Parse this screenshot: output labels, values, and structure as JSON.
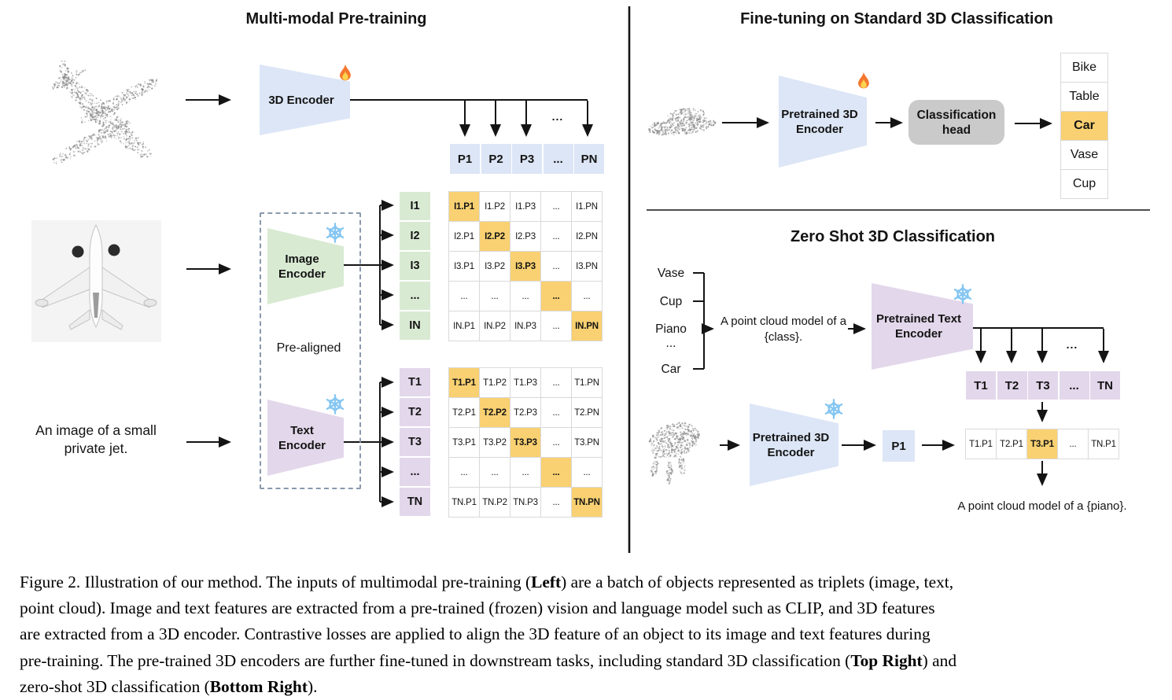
{
  "colors": {
    "blue": "#dce6f6",
    "green": "#d9ead3",
    "purple": "#e3d7eb",
    "highlight_orange": "#f9d172",
    "head_gray": "#cacaca"
  },
  "ellipsis": "...",
  "left": {
    "title": "Multi-modal Pre-training",
    "encoder3d_label": "3D Encoder",
    "image_encoder_label": "Image Encoder",
    "text_encoder_label": "Text Encoder",
    "pre_aligned": "Pre-aligned",
    "text_input": "An image of a small private jet.",
    "p_row": [
      "P1",
      "P2",
      "P3",
      "...",
      "PN"
    ],
    "i_labels": [
      "I1",
      "I2",
      "I3",
      "...",
      "IN"
    ],
    "i_matrix": [
      [
        "I1.P1",
        "I1.P2",
        "I1.P3",
        "...",
        "I1.PN"
      ],
      [
        "I2.P1",
        "I2.P2",
        "I2.P3",
        "...",
        "I2.PN"
      ],
      [
        "I3.P1",
        "I3.P2",
        "I3.P3",
        "...",
        "I3.PN"
      ],
      [
        "...",
        "...",
        "...",
        "...",
        "..."
      ],
      [
        "IN.P1",
        "IN.P2",
        "IN.P3",
        "...",
        "IN.PN"
      ]
    ],
    "t_labels": [
      "T1",
      "T2",
      "T3",
      "...",
      "TN"
    ],
    "t_matrix": [
      [
        "T1.P1",
        "T1.P2",
        "T1.P3",
        "...",
        "T1.PN"
      ],
      [
        "T2.P1",
        "T2.P2",
        "T2.P3",
        "...",
        "T2.PN"
      ],
      [
        "T3.P1",
        "T3.P2",
        "T3.P3",
        "...",
        "T3.PN"
      ],
      [
        "...",
        "...",
        "...",
        "...",
        "..."
      ],
      [
        "TN.P1",
        "TN.P2",
        "TN.P3",
        "...",
        "TN.PN"
      ]
    ]
  },
  "top_right": {
    "title": "Fine-tuning on Standard 3D Classification",
    "encoder_label": "Pretrained 3D Encoder",
    "head_label": "Classification head",
    "classes": [
      "Bike",
      "Table",
      "Car",
      "Vase",
      "Cup"
    ],
    "predicted_index": 2
  },
  "bottom_right": {
    "title": "Zero Shot 3D Classification",
    "class_candidates": [
      "Vase",
      "Cup",
      "Piano",
      "...",
      "Car"
    ],
    "prompt": "A point cloud model of a {class}.",
    "text_encoder_label": "Pretrained Text Encoder",
    "encoder3d_label": "Pretrained 3D Encoder",
    "p1_label": "P1",
    "t_row": [
      "T1",
      "T2",
      "T3",
      "...",
      "TN"
    ],
    "tp_row": [
      "T1.P1",
      "T2.P1",
      "T3.P1",
      "...",
      "TN.P1"
    ],
    "matched_index": 2,
    "result": "A point cloud model of a {piano}."
  },
  "caption": {
    "lines": [
      [
        {
          "t": "Figure 2. Illustration of our method. The inputs of multimodal pre-training ("
        },
        {
          "t": "Left",
          "b": true
        },
        {
          "t": ") are a batch of objects represented as triplets (image, text,"
        }
      ],
      [
        {
          "t": "point cloud). Image and text features are extracted from a pre-trained (frozen) vision and language model such as CLIP, and 3D features"
        }
      ],
      [
        {
          "t": "are extracted from a 3D encoder. Contrastive losses are applied to align the 3D feature of an object to its image and text features during"
        }
      ],
      [
        {
          "t": "pre-training. The pre-trained 3D encoders are further fine-tuned in downstream tasks, including standard 3D classification ("
        },
        {
          "t": "Top Right",
          "b": true
        },
        {
          "t": ") and"
        }
      ],
      [
        {
          "t": "zero-shot 3D classification ("
        },
        {
          "t": "Bottom Right",
          "b": true
        },
        {
          "t": ")."
        }
      ]
    ]
  }
}
